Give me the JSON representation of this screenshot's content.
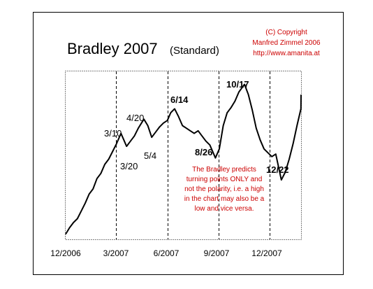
{
  "chart_data": {
    "type": "line",
    "title": "Bradley 2007",
    "subtitle": "(Standard)",
    "copyright": [
      "(C) Copyright",
      "Manfred Zimmel 2006",
      "http://www.amanita.at"
    ],
    "note": [
      "The Bradley predicts",
      "turning points ONLY and",
      "not the polarity, i.e. a high",
      "in the chart may also be a",
      "low and vice versa."
    ],
    "x_ticks": [
      "12/2006",
      "3/2007",
      "6/2007",
      "9/2007",
      "12/2007"
    ],
    "annotations": [
      {
        "text": "3/10",
        "bold": false
      },
      {
        "text": "3/20",
        "bold": false
      },
      {
        "text": "4/20",
        "bold": false
      },
      {
        "text": "5/4",
        "bold": false
      },
      {
        "text": "6/14",
        "bold": true
      },
      {
        "text": "8/26",
        "bold": true
      },
      {
        "text": "10/17",
        "bold": true
      },
      {
        "text": "12/22",
        "bold": true
      }
    ],
    "series": [
      {
        "x": [
          "2006-12-01",
          "2006-12-08",
          "2006-12-15",
          "2006-12-22",
          "2006-12-29",
          "2007-01-05",
          "2007-01-12",
          "2007-01-19",
          "2007-01-26",
          "2007-02-02",
          "2007-02-09",
          "2007-02-16",
          "2007-02-23",
          "2007-03-02",
          "2007-03-10",
          "2007-03-15",
          "2007-03-20",
          "2007-03-27",
          "2007-04-03",
          "2007-04-10",
          "2007-04-20",
          "2007-04-27",
          "2007-05-04",
          "2007-05-11",
          "2007-05-18",
          "2007-05-25",
          "2007-06-01",
          "2007-06-07",
          "2007-06-14",
          "2007-06-21",
          "2007-06-28",
          "2007-07-05",
          "2007-07-12",
          "2007-07-19",
          "2007-07-26",
          "2007-08-02",
          "2007-08-09",
          "2007-08-16",
          "2007-08-26",
          "2007-09-02",
          "2007-09-09",
          "2007-09-16",
          "2007-09-23",
          "2007-09-30",
          "2007-10-07",
          "2007-10-17",
          "2007-10-24",
          "2007-10-31",
          "2007-11-07",
          "2007-11-14",
          "2007-11-21",
          "2007-11-28",
          "2007-12-05",
          "2007-12-12",
          "2007-12-22",
          "2007-12-29",
          "2008-01-05",
          "2008-01-12",
          "2008-01-19",
          "2008-01-26",
          "2008-02-02"
        ],
        "values": [
          4,
          9,
          13,
          16,
          22,
          28,
          35,
          39,
          47,
          51,
          58,
          62,
          68,
          74,
          82,
          77,
          72,
          76,
          80,
          86,
          93,
          88,
          79,
          83,
          87,
          90,
          92,
          98,
          101,
          95,
          88,
          86,
          84,
          82,
          84,
          80,
          76,
          73,
          63,
          70,
          88,
          98,
          102,
          107,
          114,
          120,
          112,
          100,
          86,
          77,
          70,
          67,
          64,
          66,
          46,
          52,
          62,
          74,
          88,
          101,
          112
        ]
      }
    ],
    "ylim": [
      0,
      130
    ],
    "grid": {
      "vertical_dashed": true,
      "horizontal": false
    },
    "xlabel": "",
    "ylabel": ""
  }
}
